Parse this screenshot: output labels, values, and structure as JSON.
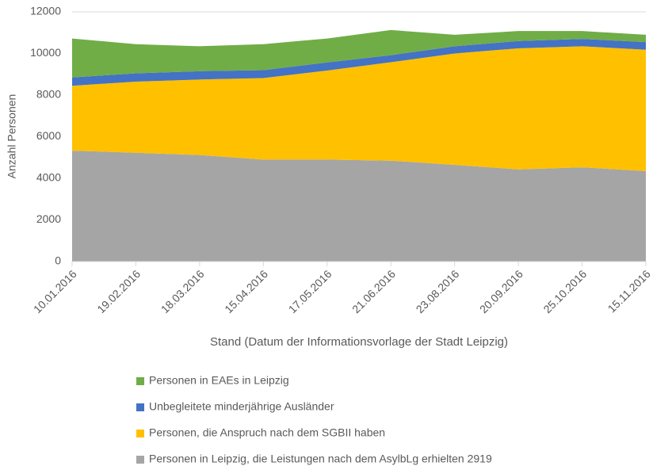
{
  "chart_data": {
    "type": "stacked-area",
    "x_label": "Stand (Datum der Informationsvorlage der Stadt Leipzig)",
    "y_label": "Anzahl Personen",
    "categories": [
      "10.01.2016",
      "19.02.2016",
      "18.03.2016",
      "15.04.2016",
      "17.05.2016",
      "21.06.2016",
      "23.08.2016",
      "20.09.2016",
      "25.10.2016",
      "15.11.2016"
    ],
    "series": [
      {
        "name": "Personen in Leipzig, die Leistungen nach dem AsylbLg erhielten 2919",
        "color": "#a5a5a5",
        "values": [
          5330,
          5230,
          5120,
          4900,
          4900,
          4850,
          4650,
          4430,
          4530,
          4350
        ]
      },
      {
        "name": "Personen, die Anspruch nach dem SGBII haben",
        "color": "#ffc000",
        "values": [
          3120,
          3420,
          3630,
          3920,
          4280,
          4730,
          5350,
          5820,
          5820,
          5830
        ]
      },
      {
        "name": "Unbegleitete minderjährige Ausländer",
        "color": "#4472c4",
        "values": [
          400,
          400,
          400,
          380,
          390,
          340,
          350,
          350,
          350,
          370
        ]
      },
      {
        "name": "Personen in EAEs in Leipzig",
        "color": "#70ad47",
        "values": [
          1870,
          1400,
          1200,
          1250,
          1150,
          1210,
          550,
          480,
          380,
          350
        ]
      }
    ],
    "ylim": [
      0,
      12000
    ],
    "yticks": [
      0,
      2000,
      4000,
      6000,
      8000,
      10000,
      12000
    ],
    "grid": true,
    "legend": "bottom"
  }
}
